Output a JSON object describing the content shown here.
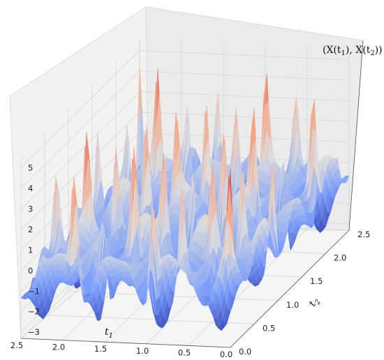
{
  "chart_data": {
    "type": "surface3d",
    "colormap": "coolwarm",
    "x_axis": {
      "label": "t1",
      "label_display": "t",
      "label_sub": "1",
      "ticks": [
        "0.0",
        "0.5",
        "1.0",
        "1.5",
        "2.0",
        "2.5"
      ],
      "lim": [
        0,
        2.5
      ]
    },
    "y_axis": {
      "label": "t2",
      "label_display": "t",
      "label_sub": "2",
      "ticks": [
        "0.0",
        "0.5",
        "1.0",
        "1.5",
        "2.0",
        "2.5"
      ],
      "lim": [
        0,
        2.5
      ]
    },
    "z_axis": {
      "label": "(X(t1), X(t2))",
      "ticks": [
        "−3",
        "−2",
        "−1",
        "0",
        "1",
        "2",
        "3",
        "4",
        "5"
      ],
      "lim": [
        -3.3,
        5.6
      ]
    },
    "grid": true,
    "surface_description": "Oscillating covariance-like surface: ridge of tall peaks (z≈5) along t1≈t2 and parallel diagonals, deep troughs (z≈−3) elsewhere, small ripples near 0."
  }
}
